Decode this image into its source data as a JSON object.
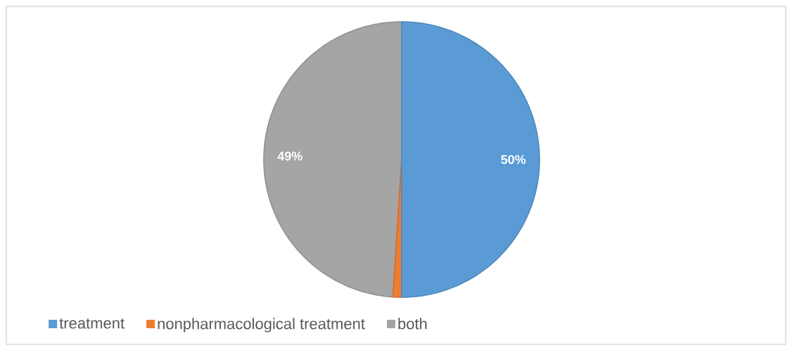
{
  "chart_data": {
    "type": "pie",
    "categories": [
      "treatment",
      "nonpharmacological treatment",
      "both"
    ],
    "values": [
      50,
      1,
      49
    ],
    "colors": [
      "#5b9bd5",
      "#ed7d31",
      "#a5a5a5"
    ],
    "value_labels": [
      "50%",
      null,
      "49%"
    ],
    "legend": "bottom left"
  }
}
